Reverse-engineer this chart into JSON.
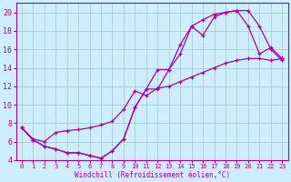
{
  "xlabel": "Windchill (Refroidissement éolien,°C)",
  "bg_color": "#cceeff",
  "grid_color": "#aacccc",
  "line_color": "#aa00aa",
  "xlim": [
    -0.5,
    23.5
  ],
  "ylim": [
    4,
    21
  ],
  "yticks": [
    4,
    6,
    8,
    10,
    12,
    14,
    16,
    18,
    20
  ],
  "xticks": [
    0,
    1,
    2,
    3,
    4,
    5,
    6,
    7,
    8,
    9,
    10,
    11,
    12,
    13,
    14,
    15,
    16,
    17,
    18,
    19,
    20,
    21,
    22,
    23
  ],
  "series1_x": [
    0,
    1,
    2,
    3,
    4,
    5,
    6,
    7,
    8,
    9,
    10,
    11,
    12,
    13,
    14,
    15,
    16,
    17,
    18,
    19,
    20,
    21,
    22,
    23
  ],
  "series1_y": [
    7.5,
    6.2,
    5.5,
    5.2,
    4.8,
    4.8,
    4.5,
    4.2,
    5.0,
    6.3,
    9.7,
    11.7,
    13.8,
    13.8,
    15.5,
    18.5,
    17.5,
    19.5,
    20.0,
    20.2,
    20.2,
    18.5,
    16.0,
    14.8
  ],
  "series2_x": [
    0,
    1,
    2,
    3,
    4,
    5,
    6,
    7,
    8,
    9,
    10,
    11,
    12,
    13,
    14,
    15,
    16,
    17,
    18,
    19,
    20,
    21,
    22,
    23
  ],
  "series2_y": [
    7.5,
    6.2,
    5.5,
    5.2,
    4.8,
    4.8,
    4.5,
    4.2,
    5.0,
    6.3,
    9.7,
    11.7,
    11.7,
    13.8,
    16.5,
    18.5,
    19.2,
    19.8,
    20.0,
    20.2,
    18.5,
    15.5,
    16.2,
    15.0
  ],
  "series3_x": [
    0,
    1,
    2,
    3,
    4,
    5,
    6,
    7,
    8,
    9,
    10,
    11,
    12,
    13,
    14,
    15,
    16,
    17,
    18,
    19,
    20,
    21,
    22,
    23
  ],
  "series3_y": [
    7.5,
    6.3,
    6.0,
    7.0,
    7.2,
    7.3,
    7.5,
    7.8,
    8.2,
    9.5,
    11.5,
    11.0,
    11.8,
    12.0,
    12.5,
    13.0,
    13.5,
    14.0,
    14.5,
    14.8,
    15.0,
    15.0,
    14.8,
    15.0
  ]
}
